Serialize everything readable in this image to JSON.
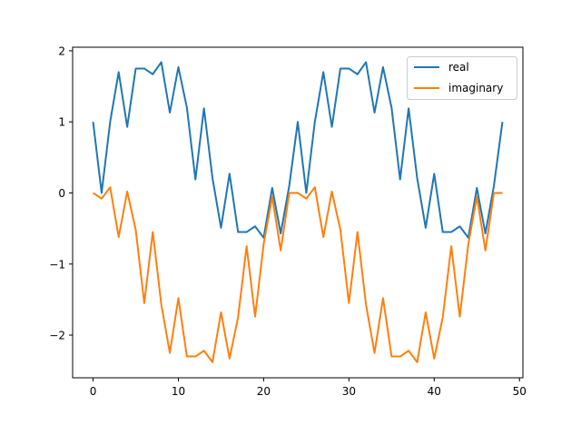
{
  "chart_data": {
    "type": "line",
    "title": "",
    "xlabel": "",
    "ylabel": "",
    "xlim": [
      -2.4,
      50.4
    ],
    "ylim": [
      -2.6,
      2.05
    ],
    "x_ticks": [
      0,
      10,
      20,
      30,
      40,
      50
    ],
    "y_ticks": [
      2,
      1,
      0,
      -1,
      -2
    ],
    "x_tick_labels": [
      "0",
      "10",
      "20",
      "30",
      "40",
      "50"
    ],
    "y_tick_labels": [
      "2",
      "1",
      "0",
      "−1",
      "−2"
    ],
    "grid": false,
    "legend_position": "top-right",
    "x": [
      0,
      1,
      2,
      3,
      4,
      5,
      6,
      7,
      8,
      9,
      10,
      11,
      12,
      13,
      14,
      15,
      16,
      17,
      18,
      19,
      20,
      21,
      22,
      23,
      24,
      25,
      26,
      27,
      28,
      29,
      30,
      31,
      32,
      33,
      34,
      35,
      36,
      37,
      38,
      39,
      40,
      41,
      42,
      43,
      44,
      45,
      46,
      47,
      48
    ],
    "series": [
      {
        "name": "real",
        "color": "#1f77b4",
        "values": [
          1.0,
          0.0,
          1.0,
          1.7,
          0.93,
          1.75,
          1.75,
          1.67,
          1.84,
          1.13,
          1.77,
          1.2,
          0.19,
          1.19,
          0.21,
          -0.49,
          0.27,
          -0.55,
          -0.55,
          -0.47,
          -0.63,
          0.07,
          -0.57,
          0.1,
          1.0,
          0.0,
          1.0,
          1.7,
          0.93,
          1.75,
          1.75,
          1.67,
          1.84,
          1.13,
          1.77,
          1.2,
          0.19,
          1.19,
          0.21,
          -0.49,
          0.27,
          -0.55,
          -0.55,
          -0.47,
          -0.63,
          0.07,
          -0.57,
          0.1,
          1.0
        ]
      },
      {
        "name": "imaginary",
        "color": "#ff7f0e",
        "values": [
          0.0,
          -0.08,
          0.08,
          -0.62,
          0.02,
          -0.52,
          -1.55,
          -0.55,
          -1.57,
          -2.25,
          -1.48,
          -2.3,
          -2.3,
          -2.22,
          -2.38,
          -1.68,
          -2.33,
          -1.75,
          -0.75,
          -1.74,
          -0.72,
          -0.05,
          -0.81,
          0.0,
          0.0,
          -0.08,
          0.08,
          -0.62,
          0.02,
          -0.52,
          -1.55,
          -0.55,
          -1.57,
          -2.25,
          -1.48,
          -2.3,
          -2.3,
          -2.22,
          -2.38,
          -1.68,
          -2.33,
          -1.75,
          -0.75,
          -1.74,
          -0.72,
          -0.05,
          -0.81,
          0.0,
          0.0
        ]
      }
    ]
  }
}
